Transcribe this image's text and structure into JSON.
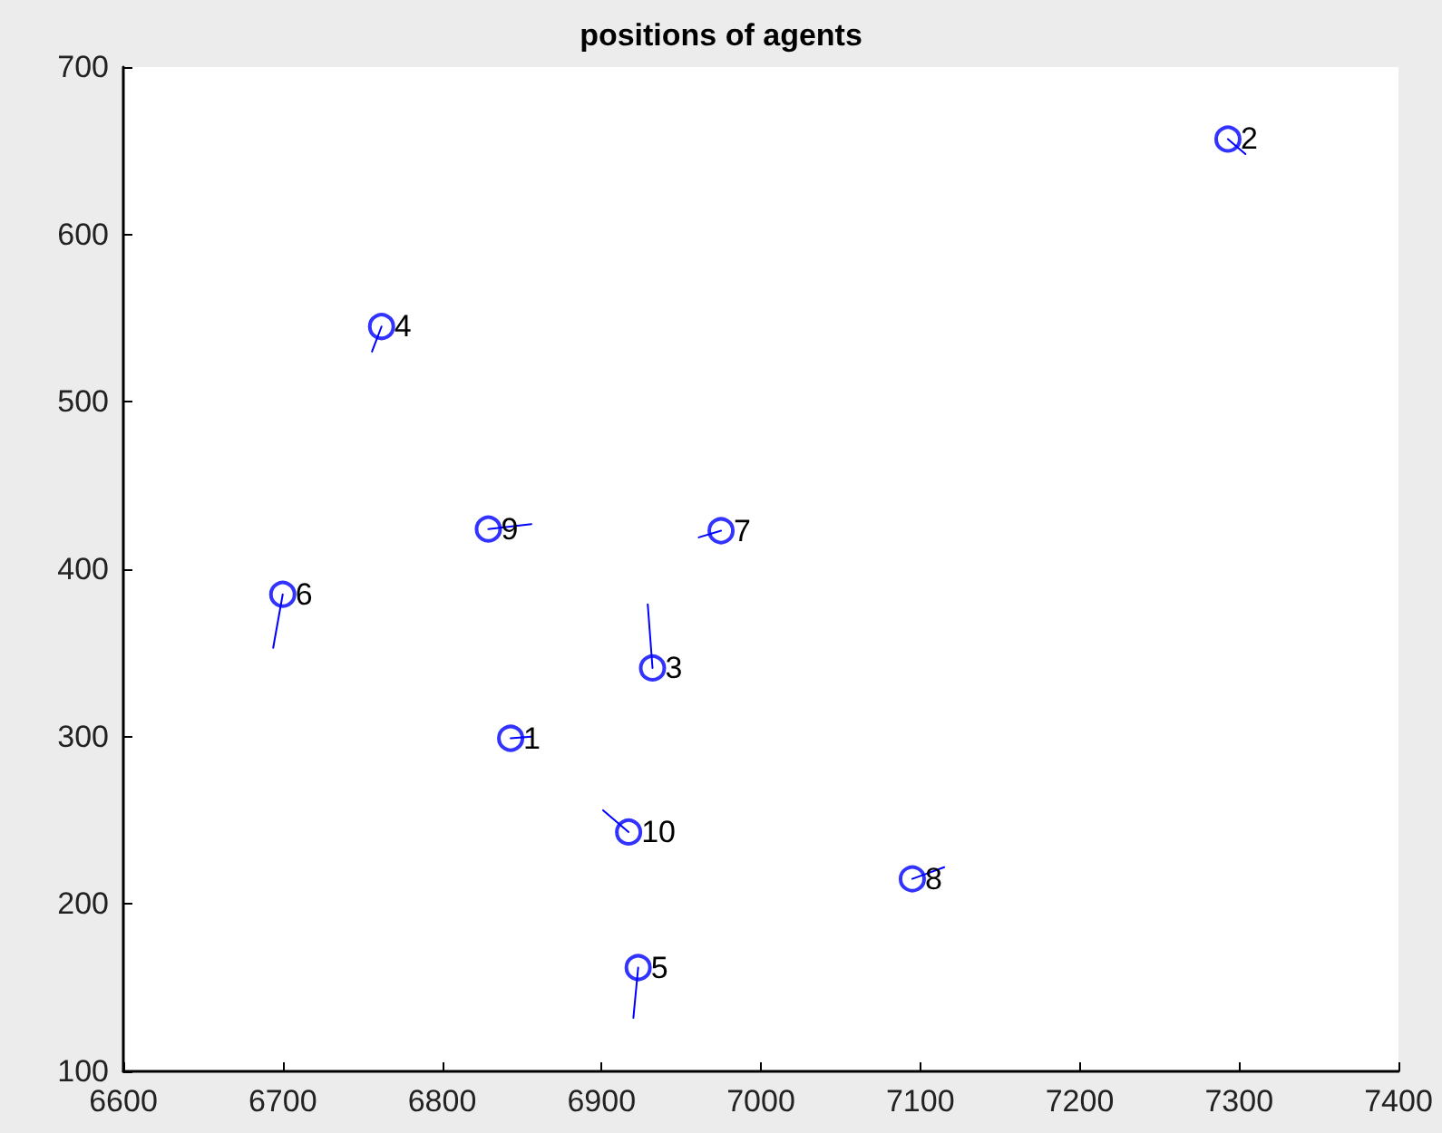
{
  "chart_data": {
    "type": "scatter",
    "title": "positions of agents",
    "marker": "circle",
    "grid": false,
    "xlim": [
      6600,
      7400
    ],
    "xticks": [
      6600,
      6700,
      6800,
      6900,
      7000,
      7100,
      7200,
      7300,
      7400
    ],
    "ylim": [
      100,
      700
    ],
    "yticks": [
      100,
      200,
      300,
      400,
      500,
      600,
      700
    ],
    "series": [
      {
        "color": "#0000ff",
        "x": [
          6843,
          7293,
          6932,
          6762,
          6923,
          6700,
          6975,
          7095,
          6829,
          6917
        ],
        "values": [
          299,
          657,
          341,
          545,
          162,
          385,
          423,
          215,
          424,
          243
        ]
      },
      {
        "type": "line",
        "marker": "none",
        "color": "#0000ff",
        "x": [
          6843,
          6856
        ],
        "values": [
          299,
          300
        ]
      },
      {
        "type": "line",
        "marker": "none",
        "color": "#0000ff",
        "x": [
          7293,
          7304
        ],
        "values": [
          657,
          648
        ]
      },
      {
        "type": "line",
        "marker": "none",
        "color": "#0000ff",
        "x": [
          6932,
          6929
        ],
        "values": [
          341,
          379
        ]
      },
      {
        "type": "line",
        "marker": "none",
        "color": "#0000ff",
        "x": [
          6762,
          6756
        ],
        "values": [
          545,
          530
        ]
      },
      {
        "type": "line",
        "marker": "none",
        "color": "#0000ff",
        "x": [
          6923,
          6920
        ],
        "values": [
          162,
          132
        ]
      },
      {
        "type": "line",
        "marker": "none",
        "color": "#0000ff",
        "x": [
          6700,
          6694
        ],
        "values": [
          385,
          353
        ]
      },
      {
        "type": "line",
        "marker": "none",
        "color": "#0000ff",
        "x": [
          6975,
          6961
        ],
        "values": [
          423,
          419
        ]
      },
      {
        "type": "line",
        "marker": "none",
        "color": "#0000ff",
        "x": [
          7095,
          7115
        ],
        "values": [
          215,
          222
        ]
      },
      {
        "type": "line",
        "marker": "none",
        "color": "#0000ff",
        "x": [
          6829,
          6856
        ],
        "values": [
          424,
          427
        ]
      },
      {
        "type": "line",
        "marker": "none",
        "color": "#0000ff",
        "x": [
          6917,
          6901
        ],
        "values": [
          243,
          256
        ]
      }
    ],
    "annotations": [
      {
        "text": "1",
        "x": 6843,
        "y": 299
      },
      {
        "text": "2",
        "x": 7293,
        "y": 657
      },
      {
        "text": "3",
        "x": 6932,
        "y": 341
      },
      {
        "text": "4",
        "x": 6762,
        "y": 545
      },
      {
        "text": "5",
        "x": 6923,
        "y": 162
      },
      {
        "text": "6",
        "x": 6700,
        "y": 385
      },
      {
        "text": "7",
        "x": 6975,
        "y": 423
      },
      {
        "text": "8",
        "x": 7095,
        "y": 215
      },
      {
        "text": "9",
        "x": 6829,
        "y": 424
      },
      {
        "text": "10",
        "x": 6917,
        "y": 243
      }
    ]
  }
}
